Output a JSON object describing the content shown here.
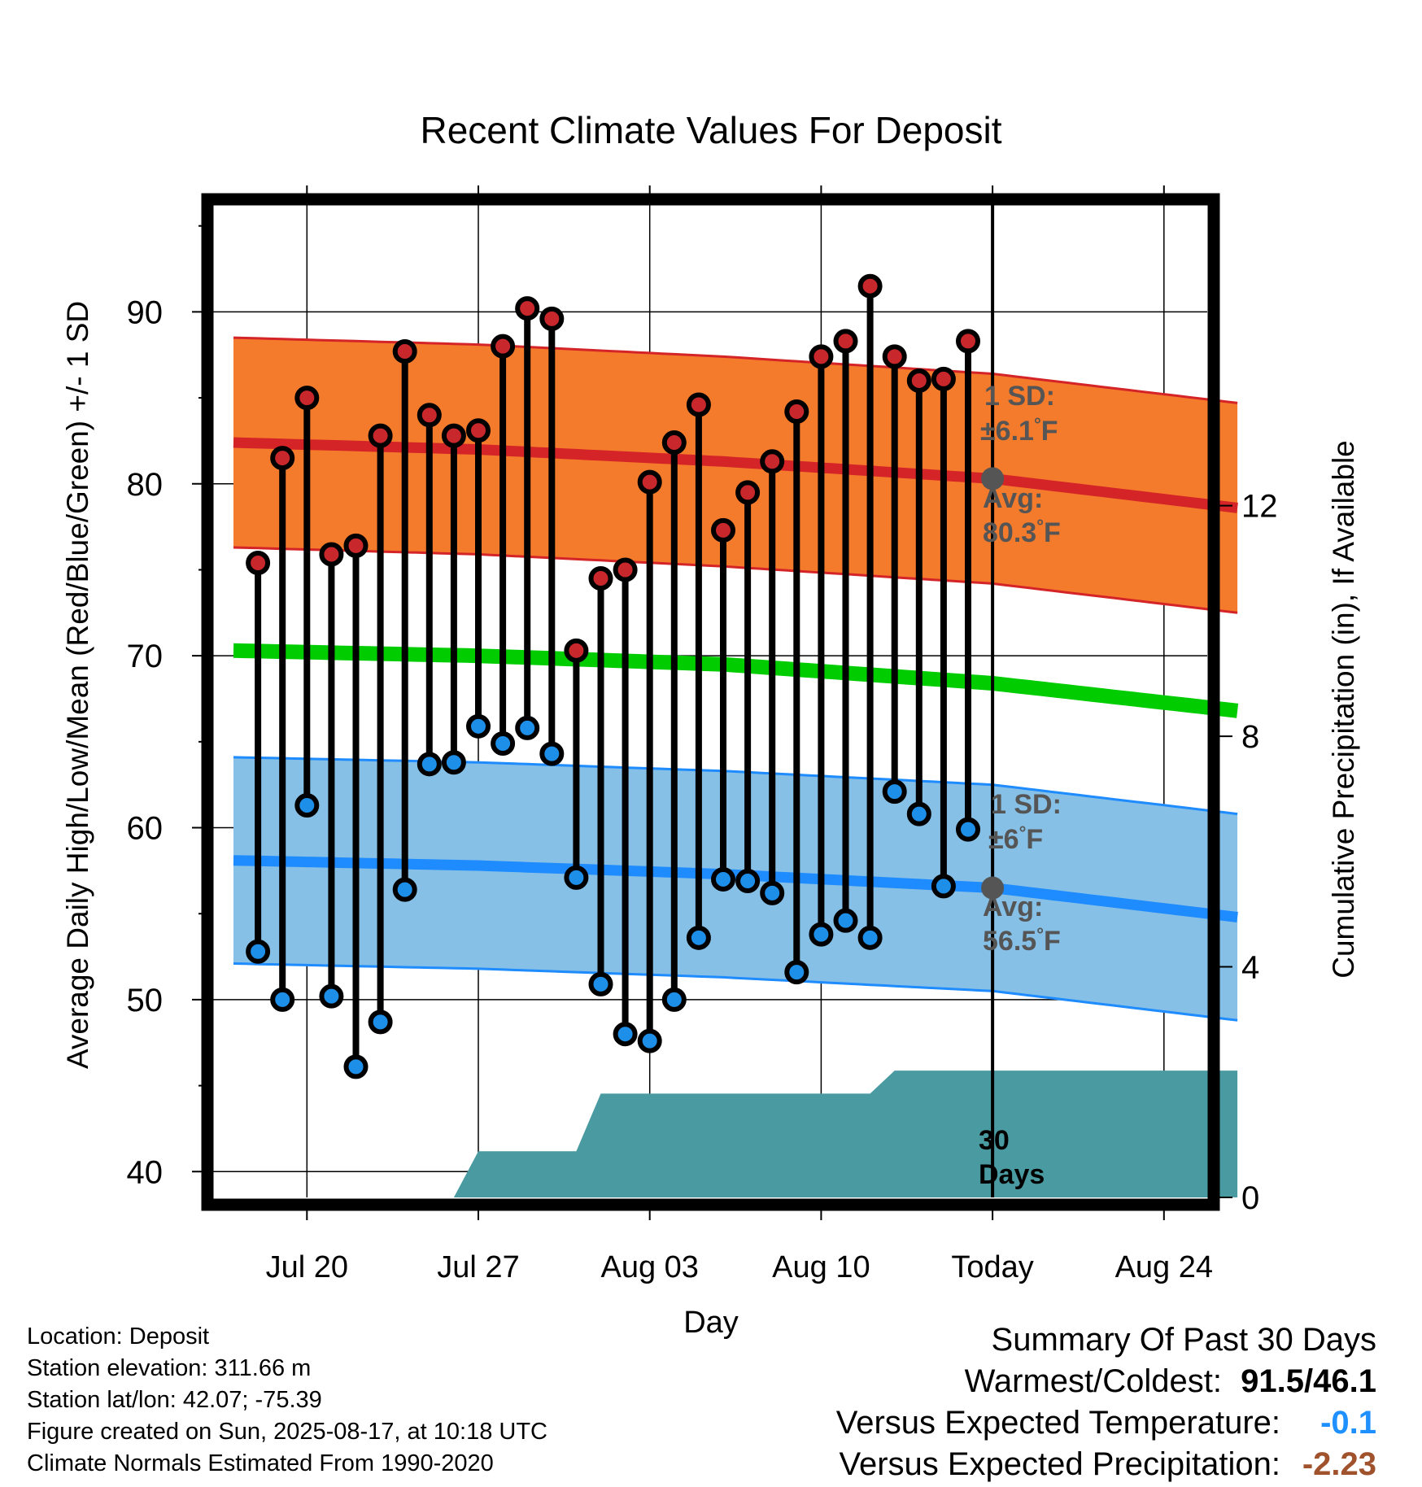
{
  "chart_data": {
    "type": "line",
    "title": "Recent Climate Values For Deposit",
    "xlabel": "Day",
    "ylabel": "Average Daily High/Low/Mean (Red/Blue/Green) +/- 1 SD",
    "y2label": "Cumulative Precipitation (in), If Available",
    "x_tick_labels": [
      "Jul 20",
      "Jul 27",
      "Aug 03",
      "Aug 10",
      "Today",
      "Aug 24"
    ],
    "x_tick_dates": [
      "2025-07-20",
      "2025-07-27",
      "2025-08-03",
      "2025-08-10",
      "2025-08-17",
      "2025-08-24"
    ],
    "x_range": [
      "2025-07-17",
      "2025-08-27"
    ],
    "ylim": [
      38.5,
      96.5
    ],
    "y_ticks": [
      40,
      50,
      60,
      70,
      80,
      90
    ],
    "y2lim": [
      0,
      17.3
    ],
    "y2_ticks": [
      0,
      4,
      8,
      12
    ],
    "grid": true,
    "dates": [
      "2025-07-18",
      "2025-07-19",
      "2025-07-20",
      "2025-07-21",
      "2025-07-22",
      "2025-07-23",
      "2025-07-24",
      "2025-07-25",
      "2025-07-26",
      "2025-07-27",
      "2025-07-28",
      "2025-07-29",
      "2025-07-30",
      "2025-07-31",
      "2025-08-01",
      "2025-08-02",
      "2025-08-03",
      "2025-08-04",
      "2025-08-05",
      "2025-08-06",
      "2025-08-07",
      "2025-08-08",
      "2025-08-09",
      "2025-08-10",
      "2025-08-11",
      "2025-08-12",
      "2025-08-13",
      "2025-08-14",
      "2025-08-15",
      "2025-08-16"
    ],
    "highs": [
      75.4,
      81.5,
      85.0,
      75.9,
      76.4,
      82.8,
      87.7,
      84.0,
      82.8,
      83.1,
      88.0,
      90.2,
      89.6,
      70.3,
      74.5,
      75.0,
      80.1,
      82.4,
      84.6,
      77.3,
      79.5,
      81.3,
      84.2,
      87.4,
      88.3,
      91.5,
      87.4,
      86.0,
      86.1,
      88.3
    ],
    "lows": [
      52.8,
      50.0,
      61.3,
      50.2,
      46.1,
      48.7,
      56.4,
      63.7,
      63.8,
      65.9,
      64.9,
      65.8,
      64.3,
      57.1,
      50.9,
      48.0,
      47.6,
      50.0,
      53.6,
      57.0,
      56.9,
      56.2,
      51.6,
      53.8,
      54.6,
      53.6,
      62.1,
      60.8,
      56.6,
      59.9
    ],
    "normals": {
      "high_mean": {
        "dates": [
          "2025-07-17",
          "2025-07-27",
          "2025-08-06",
          "2025-08-17",
          "2025-08-27"
        ],
        "values": [
          82.4,
          82.0,
          81.3,
          80.3,
          78.6
        ]
      },
      "high_sd": 6.1,
      "low_mean": {
        "dates": [
          "2025-07-17",
          "2025-07-27",
          "2025-08-06",
          "2025-08-17",
          "2025-08-27"
        ],
        "values": [
          58.1,
          57.8,
          57.3,
          56.5,
          54.8
        ]
      },
      "low_sd": 6.0,
      "mean": {
        "dates": [
          "2025-07-17",
          "2025-07-27",
          "2025-08-06",
          "2025-08-17",
          "2025-08-27"
        ],
        "values": [
          70.3,
          70.0,
          69.5,
          68.4,
          66.8
        ]
      }
    },
    "precip_cumulative": {
      "dates": [
        "2025-07-17",
        "2025-07-26",
        "2025-07-27",
        "2025-07-31",
        "2025-08-01",
        "2025-08-12",
        "2025-08-13",
        "2025-08-27"
      ],
      "values": [
        0,
        0,
        0.8,
        0.8,
        1.8,
        1.8,
        2.2,
        2.2
      ]
    },
    "annotations": {
      "high_sd_label": "1 SD:",
      "high_sd_value": "±6.1",
      "high_avg_label": "Avg:",
      "high_avg_value": "80.3",
      "low_sd_label": "1 SD:",
      "low_sd_value": "±6",
      "low_avg_label": "Avg:",
      "low_avg_value": "56.5",
      "unit": "°F",
      "period_label": "30",
      "period_unit": "Days"
    },
    "colors": {
      "high_band": "#f47b2c",
      "high_line": "#d42427",
      "low_band": "#86c0e6",
      "low_line": "#1e8bff",
      "mean_line": "#00cc00",
      "precip": "#4a9aa1",
      "high_marker": "#c8272c",
      "low_marker": "#1e8fe8",
      "today_marker": "#555555",
      "annotation_text": "#555555"
    }
  },
  "info": {
    "location": "Location: Deposit",
    "elevation": "Station elevation: 311.66 m",
    "latlon": "Station lat/lon: 42.07; -75.39",
    "created": "Figure created on Sun, 2025-08-17, at 10:18 UTC",
    "normals": "Climate Normals Estimated From 1990-2020"
  },
  "summary": {
    "title": "Summary Of Past 30 Days",
    "warmest_label": "Warmest/Coldest:",
    "warmest_value": "91.5/46.1",
    "temp_label": "Versus Expected Temperature:",
    "temp_value": "-0.1",
    "precip_label": "Versus Expected Precipitation:",
    "precip_value": "-2.23"
  }
}
